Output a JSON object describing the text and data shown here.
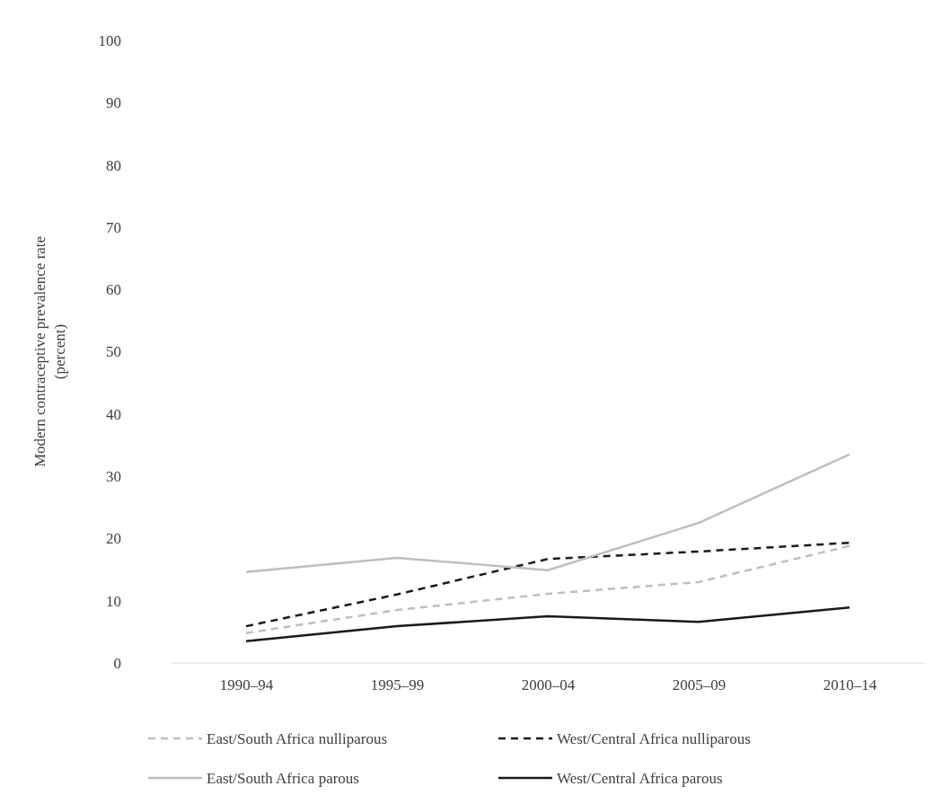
{
  "chart_data": {
    "type": "line",
    "ylabel": "Modern contraceptive  prevalence rate\n(percent)",
    "categories": [
      "1990–94",
      "1995–99",
      "2000–04",
      "2005–09",
      "2010–14"
    ],
    "ylim": [
      0,
      100
    ],
    "yticks": [
      0,
      10,
      20,
      30,
      40,
      50,
      60,
      70,
      80,
      90,
      100
    ],
    "grid": false,
    "legend": "bottom",
    "marker": "none",
    "series": [
      {
        "name": "East/South Africa nulliparous",
        "color": "#bfbfbf",
        "line_style": "dashed",
        "values": [
          4.8,
          8.5,
          11.1,
          13.0,
          18.8
        ]
      },
      {
        "name": "West/Central Africa nulliparous",
        "color": "#1a1a1a",
        "line_style": "dashed",
        "values": [
          5.9,
          11.0,
          16.7,
          17.9,
          19.3
        ]
      },
      {
        "name": "East/South Africa parous",
        "color": "#bfbfbf",
        "line_style": "solid",
        "values": [
          14.6,
          16.9,
          14.9,
          22.5,
          33.5
        ]
      },
      {
        "name": "West/Central Africa parous",
        "color": "#1a1a1a",
        "line_style": "solid",
        "values": [
          3.5,
          5.9,
          7.5,
          6.6,
          8.9
        ]
      }
    ]
  }
}
